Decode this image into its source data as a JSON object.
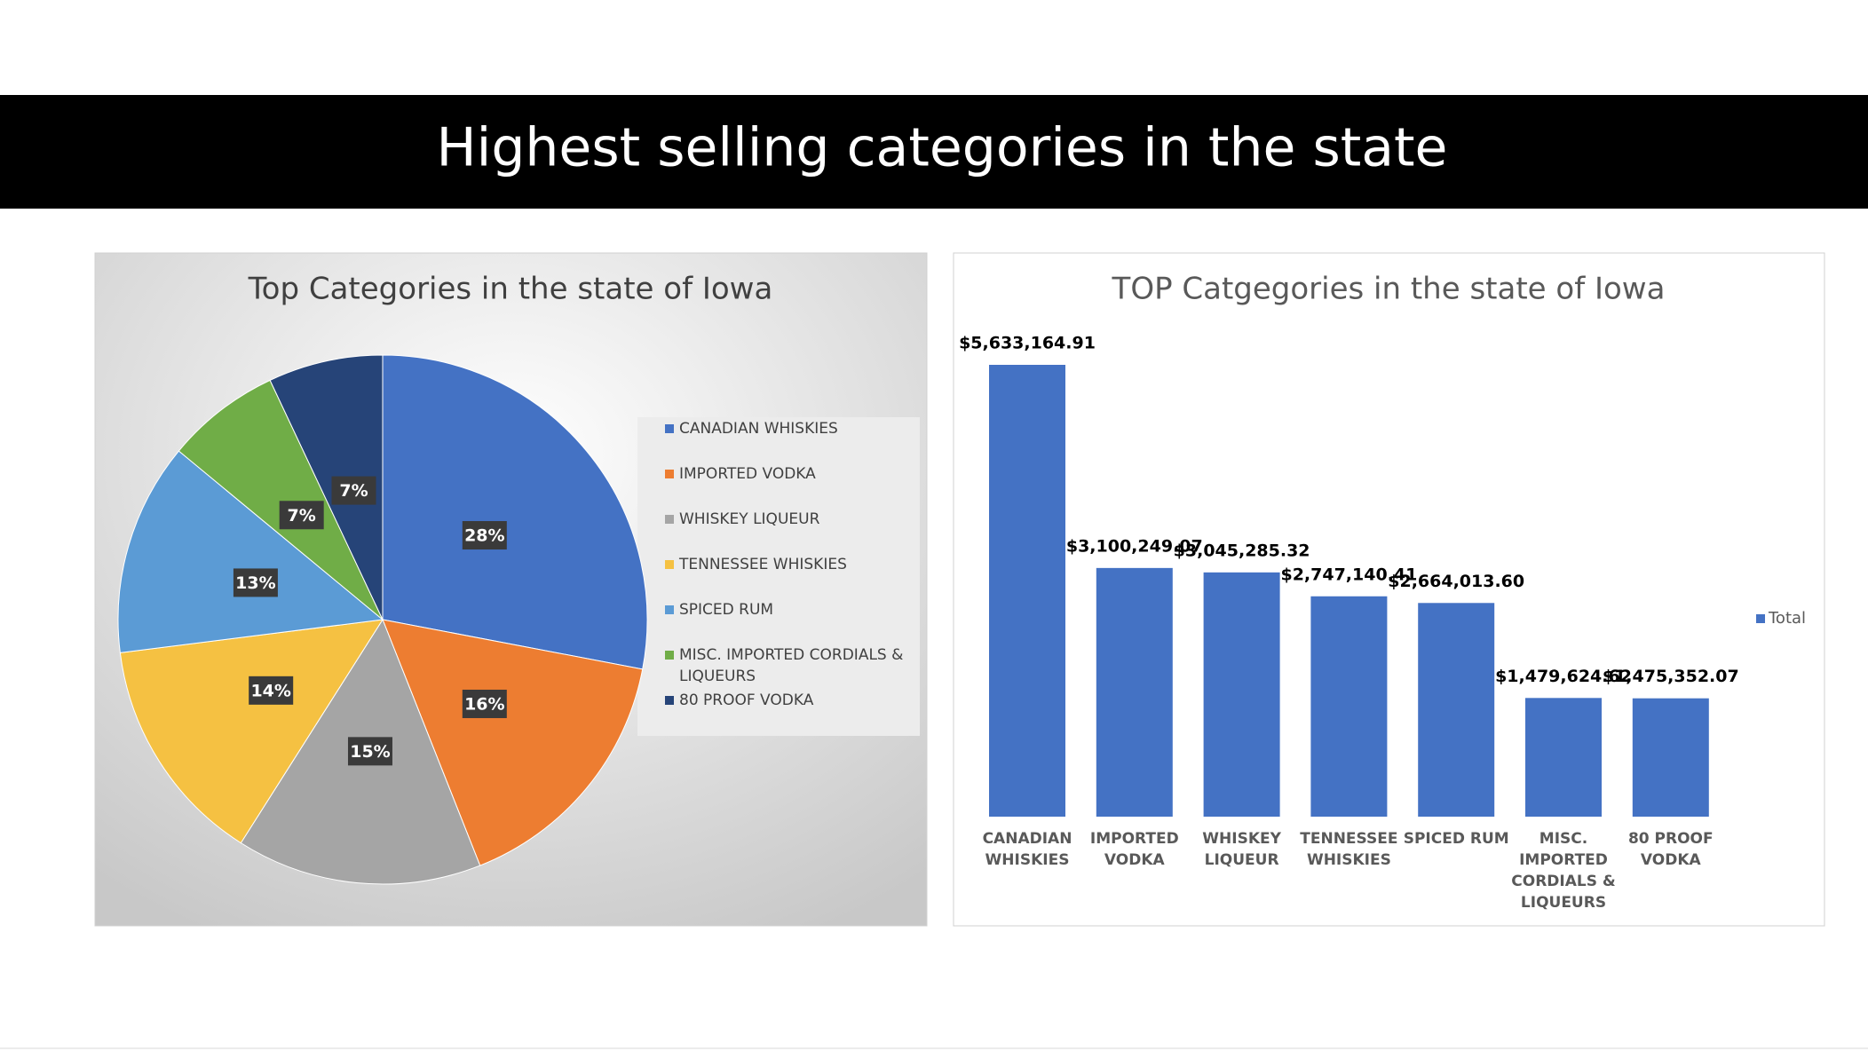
{
  "title": "Highest selling categories in the state",
  "chart_data": [
    {
      "type": "pie",
      "title": "Top Categories in the state of Iowa",
      "categories": [
        "CANADIAN WHISKIES",
        "IMPORTED VODKA",
        "WHISKEY LIQUEUR",
        "TENNESSEE WHISKIES",
        "SPICED RUM",
        "MISC. IMPORTED CORDIALS & LIQUEURS",
        "80 PROOF VODKA"
      ],
      "values": [
        28,
        16,
        15,
        14,
        13,
        7,
        7
      ],
      "value_labels": [
        "28%",
        "16%",
        "15%",
        "14%",
        "13%",
        "7%",
        "7%"
      ],
      "colors": [
        "#4472c4",
        "#ed7d31",
        "#a5a5a5",
        "#f5c142",
        "#5b9bd5",
        "#70ad47",
        "#264478"
      ],
      "legend": "right"
    },
    {
      "type": "bar",
      "title": "TOP Catgegories in the state of Iowa",
      "categories": [
        "CANADIAN WHISKIES",
        "IMPORTED VODKA",
        "WHISKEY LIQUEUR",
        "TENNESSEE WHISKIES",
        "SPICED RUM",
        "MISC. IMPORTED CORDIALS & LIQUEURS",
        "80 PROOF VODKA"
      ],
      "series": [
        {
          "name": "Total",
          "color": "#4472c4",
          "values": [
            5633164.91,
            3100249.07,
            3045285.32,
            2747140.41,
            2664013.6,
            1479624.62,
            1475352.07
          ],
          "value_labels": [
            "$5,633,164.91",
            "$3,100,249.07",
            "$3,045,285.32",
            "$2,747,140.41",
            "$2,664,013.60",
            "$1,479,624.62",
            "$1,475,352.07"
          ]
        }
      ],
      "legend": "right"
    }
  ]
}
